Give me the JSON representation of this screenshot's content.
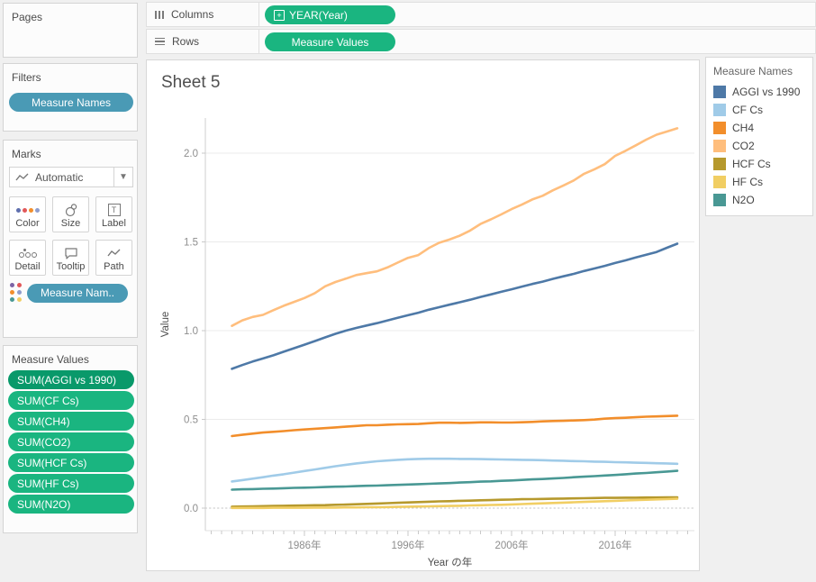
{
  "shelves": {
    "columns_label": "Columns",
    "rows_label": "Rows",
    "columns_pill": "YEAR(Year)",
    "rows_pill": "Measure Values"
  },
  "panels": {
    "pages": {
      "title": "Pages"
    },
    "filters": {
      "title": "Filters",
      "pills": [
        "Measure Names"
      ]
    },
    "marks": {
      "title": "Marks",
      "mark_type": "Automatic",
      "buttons": [
        {
          "label": "Color",
          "icon": "color-dots-icon"
        },
        {
          "label": "Size",
          "icon": "size-circles-icon"
        },
        {
          "label": "Label",
          "icon": "label-t-icon"
        },
        {
          "label": "Detail",
          "icon": "detail-dots-icon"
        },
        {
          "label": "Tooltip",
          "icon": "tooltip-bubble-icon"
        },
        {
          "label": "Path",
          "icon": "path-line-icon"
        }
      ],
      "pills": [
        "Measure Nam.."
      ]
    },
    "measure_values": {
      "title": "Measure Values",
      "pills": [
        "SUM(AGGI vs 1990)",
        "SUM(CF Cs)",
        "SUM(CH4)",
        "SUM(CO2)",
        "SUM(HCF Cs)",
        "SUM(HF Cs)",
        "SUM(N2O)"
      ]
    }
  },
  "legend": {
    "title": "Measure Names",
    "items": [
      {
        "label": "AGGI vs 1990",
        "color": "#4e79a7"
      },
      {
        "label": "CF Cs",
        "color": "#a0cbe8"
      },
      {
        "label": "CH4",
        "color": "#f28e2b"
      },
      {
        "label": "CO2",
        "color": "#ffbe7d"
      },
      {
        "label": "HCF Cs",
        "color": "#b6992d"
      },
      {
        "label": "HF Cs",
        "color": "#f1ce63"
      },
      {
        "label": "N2O",
        "color": "#499894"
      }
    ]
  },
  "colors": {
    "pill_blue": "#4a9ab5",
    "pill_green": "#1ab580",
    "pill_green_dark": "#09996a",
    "gridline": "#ebebeb",
    "zero_line": "#c4c4c4",
    "axis_line": "#cfcfcf"
  },
  "chart_data": {
    "type": "line",
    "title": "Sheet 5",
    "xlabel": "Year の年",
    "ylabel": "Value",
    "y_ticks": [
      0.0,
      0.5,
      1.0,
      1.5,
      2.0
    ],
    "y_tick_labels": [
      "0.0",
      "0.5",
      "1.0",
      "1.5",
      "2.0"
    ],
    "x_tick_labels": [
      "1986年",
      "1996年",
      "2006年",
      "2016年"
    ],
    "x_tick_years": [
      1986,
      1996,
      2006,
      2016
    ],
    "xlim": [
      1976.5,
      2023.8
    ],
    "ylim": [
      -0.13,
      2.2
    ],
    "grid": true,
    "legend_position": "right-card",
    "x_years": [
      1979,
      1980,
      1981,
      1982,
      1983,
      1984,
      1985,
      1986,
      1987,
      1988,
      1989,
      1990,
      1991,
      1992,
      1993,
      1994,
      1995,
      1996,
      1997,
      1998,
      1999,
      2000,
      2001,
      2002,
      2003,
      2004,
      2005,
      2006,
      2007,
      2008,
      2009,
      2010,
      2011,
      2012,
      2013,
      2014,
      2015,
      2016,
      2017,
      2018,
      2019,
      2020,
      2021,
      2022
    ],
    "series": [
      {
        "name": "AGGI vs 1990",
        "color": "#4e79a7",
        "values": [
          0.785,
          0.806,
          0.826,
          0.843,
          0.861,
          0.881,
          0.901,
          0.921,
          0.941,
          0.962,
          0.982,
          1.0,
          1.015,
          1.029,
          1.042,
          1.057,
          1.072,
          1.087,
          1.101,
          1.118,
          1.132,
          1.146,
          1.16,
          1.174,
          1.19,
          1.204,
          1.219,
          1.233,
          1.248,
          1.263,
          1.276,
          1.292,
          1.306,
          1.32,
          1.336,
          1.35,
          1.365,
          1.381,
          1.396,
          1.412,
          1.428,
          1.443,
          1.467,
          1.49
        ]
      },
      {
        "name": "CF Cs",
        "color": "#a0cbe8",
        "values": [
          0.15,
          0.158,
          0.166,
          0.174,
          0.183,
          0.191,
          0.2,
          0.209,
          0.218,
          0.227,
          0.236,
          0.244,
          0.252,
          0.258,
          0.264,
          0.268,
          0.272,
          0.275,
          0.277,
          0.278,
          0.278,
          0.278,
          0.277,
          0.277,
          0.276,
          0.275,
          0.274,
          0.273,
          0.272,
          0.271,
          0.27,
          0.268,
          0.267,
          0.265,
          0.264,
          0.262,
          0.261,
          0.259,
          0.258,
          0.256,
          0.255,
          0.253,
          0.252,
          0.25
        ]
      },
      {
        "name": "CH4",
        "color": "#f28e2b",
        "values": [
          0.406,
          0.413,
          0.42,
          0.426,
          0.43,
          0.434,
          0.439,
          0.443,
          0.447,
          0.451,
          0.455,
          0.459,
          0.463,
          0.467,
          0.467,
          0.47,
          0.472,
          0.473,
          0.474,
          0.478,
          0.481,
          0.481,
          0.48,
          0.481,
          0.483,
          0.483,
          0.482,
          0.482,
          0.484,
          0.486,
          0.489,
          0.491,
          0.492,
          0.494,
          0.496,
          0.499,
          0.504,
          0.507,
          0.509,
          0.512,
          0.515,
          0.517,
          0.519,
          0.521
        ]
      },
      {
        "name": "CO2",
        "color": "#ffbe7d",
        "values": [
          1.027,
          1.058,
          1.077,
          1.089,
          1.115,
          1.14,
          1.162,
          1.184,
          1.211,
          1.25,
          1.274,
          1.293,
          1.313,
          1.324,
          1.334,
          1.356,
          1.383,
          1.41,
          1.426,
          1.465,
          1.495,
          1.513,
          1.535,
          1.564,
          1.601,
          1.627,
          1.655,
          1.685,
          1.71,
          1.739,
          1.76,
          1.791,
          1.818,
          1.846,
          1.884,
          1.909,
          1.938,
          1.985,
          2.013,
          2.044,
          2.076,
          2.104,
          2.122,
          2.14
        ]
      },
      {
        "name": "HCF Cs",
        "color": "#b6992d",
        "values": [
          0.008,
          0.009,
          0.01,
          0.011,
          0.012,
          0.013,
          0.014,
          0.015,
          0.016,
          0.017,
          0.019,
          0.02,
          0.022,
          0.024,
          0.026,
          0.028,
          0.03,
          0.032,
          0.034,
          0.036,
          0.038,
          0.039,
          0.041,
          0.042,
          0.044,
          0.045,
          0.047,
          0.048,
          0.05,
          0.051,
          0.052,
          0.053,
          0.054,
          0.055,
          0.056,
          0.057,
          0.058,
          0.058,
          0.059,
          0.059,
          0.06,
          0.06,
          0.061,
          0.061
        ]
      },
      {
        "name": "HF Cs",
        "color": "#f1ce63",
        "values": [
          0.001,
          0.001,
          0.001,
          0.001,
          0.002,
          0.002,
          0.002,
          0.002,
          0.003,
          0.003,
          0.003,
          0.004,
          0.004,
          0.005,
          0.005,
          0.006,
          0.007,
          0.008,
          0.009,
          0.01,
          0.011,
          0.012,
          0.013,
          0.015,
          0.016,
          0.018,
          0.019,
          0.021,
          0.023,
          0.025,
          0.027,
          0.029,
          0.031,
          0.033,
          0.035,
          0.037,
          0.039,
          0.041,
          0.043,
          0.045,
          0.047,
          0.049,
          0.051,
          0.053
        ]
      },
      {
        "name": "N2O",
        "color": "#499894",
        "values": [
          0.104,
          0.106,
          0.107,
          0.109,
          0.11,
          0.112,
          0.114,
          0.115,
          0.117,
          0.119,
          0.121,
          0.122,
          0.124,
          0.126,
          0.127,
          0.129,
          0.131,
          0.133,
          0.135,
          0.137,
          0.139,
          0.141,
          0.144,
          0.146,
          0.149,
          0.151,
          0.154,
          0.156,
          0.159,
          0.162,
          0.164,
          0.167,
          0.17,
          0.174,
          0.177,
          0.18,
          0.184,
          0.187,
          0.191,
          0.195,
          0.198,
          0.202,
          0.206,
          0.21
        ]
      }
    ]
  }
}
